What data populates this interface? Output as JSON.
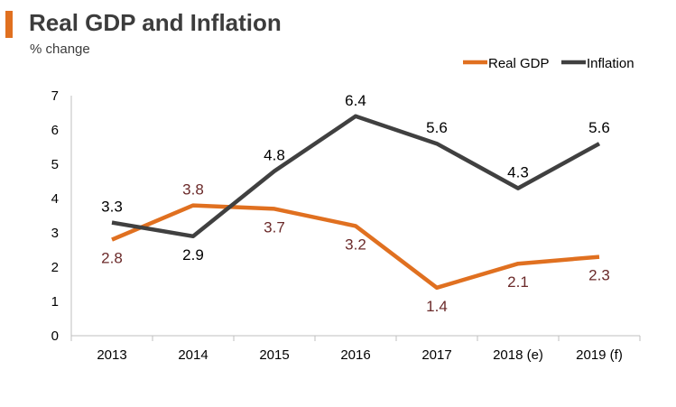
{
  "colors": {
    "accent": "#e07020",
    "real_gdp": "#e07020",
    "inflation": "#404040",
    "gdp_label": "#6b2a2a",
    "inflation_label": "#000000"
  },
  "chart_data": {
    "type": "line",
    "title": "Real GDP and Inflation",
    "ylabel": "% change",
    "xlabel": "",
    "categories": [
      "2013",
      "2014",
      "2015",
      "2016",
      "2017",
      "2018 (e)",
      "2019 (f)"
    ],
    "series": [
      {
        "name": "Real GDP",
        "values": [
          2.8,
          3.8,
          3.7,
          3.2,
          1.4,
          2.1,
          2.3
        ],
        "labels": [
          "2.8",
          "3.8",
          "3.7",
          "3.2",
          "1.4",
          "2.1",
          "2.3"
        ]
      },
      {
        "name": "Inflation",
        "values": [
          3.3,
          2.9,
          4.8,
          6.4,
          5.6,
          4.3,
          5.6
        ],
        "labels": [
          "3.3",
          "2.9",
          "4.8",
          "6.4",
          "5.6",
          "4.3",
          "5.6"
        ]
      }
    ],
    "ylim": [
      0,
      7
    ],
    "yticks": [
      "0",
      "1",
      "2",
      "3",
      "4",
      "5",
      "6",
      "7"
    ],
    "grid": false,
    "legend": "top-right"
  }
}
